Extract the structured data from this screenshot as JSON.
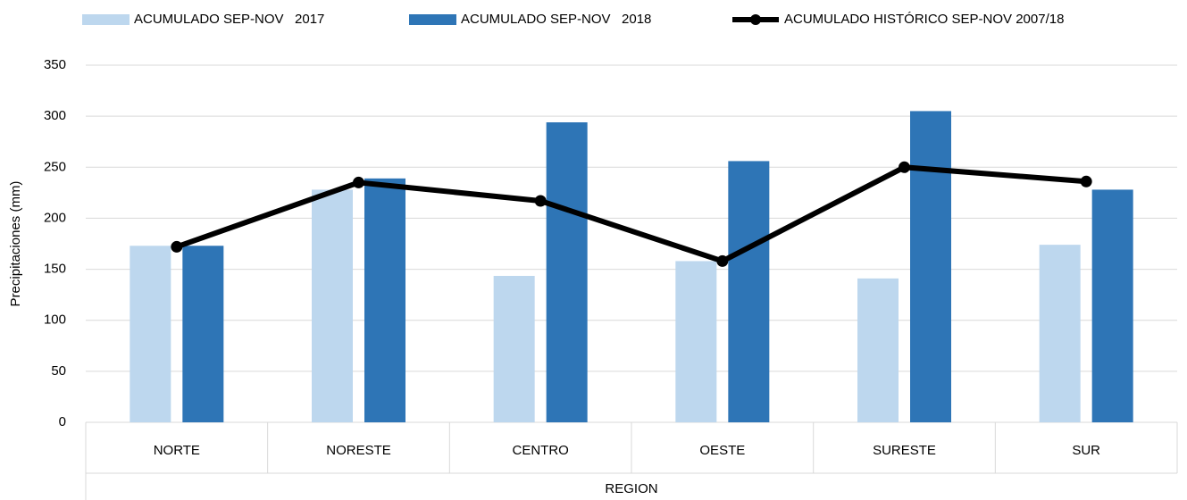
{
  "chart_data": {
    "type": "bar",
    "categories": [
      "NORTE",
      "NORESTE",
      "CENTRO",
      "OESTE",
      "SURESTE",
      "SUR"
    ],
    "series": [
      {
        "name": "ACUMULADO SEP-NOV   2017",
        "color": "#bdd7ee",
        "values": [
          173,
          228,
          143.5,
          158,
          141,
          174
        ]
      },
      {
        "name": "ACUMULADO SEP-NOV   2018",
        "color": "#2e75b6",
        "values": [
          173,
          239,
          294,
          256,
          305,
          228
        ]
      },
      {
        "name": "ACUMULADO HISTÓRICO SEP-NOV 2007/18",
        "color": "#000000",
        "type": "line",
        "values": [
          172,
          235,
          217,
          158,
          250,
          236
        ]
      }
    ],
    "xlabel": "REGION",
    "ylabel": "Precipitaciones (mm)",
    "ylim": [
      0,
      350
    ],
    "yticks": [
      0,
      50,
      100,
      150,
      200,
      250,
      300,
      350
    ],
    "grid": true,
    "legend": "top"
  }
}
